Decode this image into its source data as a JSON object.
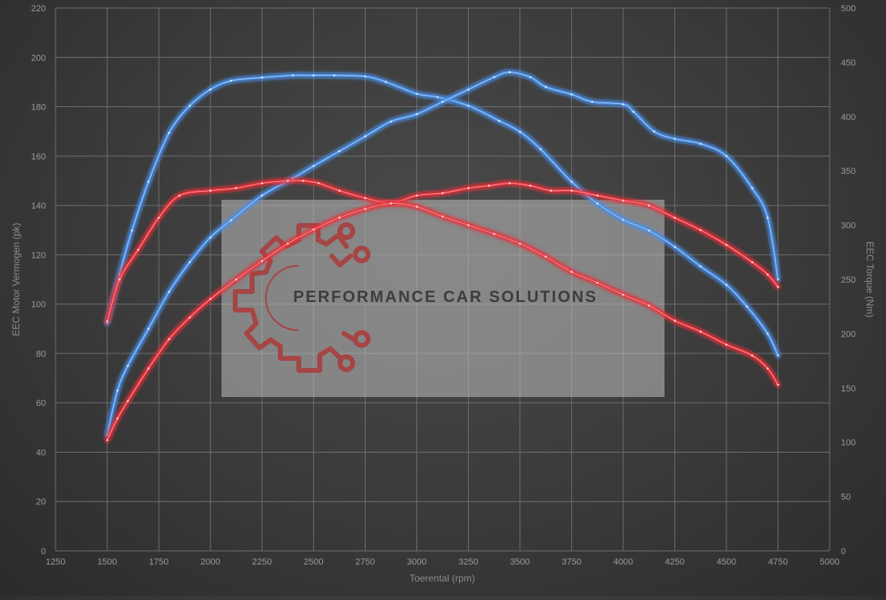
{
  "chart_data": {
    "type": "line",
    "xlabel": "Toerental (rpm)",
    "ylabel_left": "EEC Motor Vermogen (pk)",
    "ylabel_right": "EEC Torque (Nm)",
    "xlim": [
      1250,
      5000
    ],
    "ylim_left": [
      0,
      220
    ],
    "ylim_right": [
      0,
      500
    ],
    "x_ticks": [
      1250,
      1500,
      1750,
      2000,
      2250,
      2500,
      2750,
      3000,
      3250,
      3500,
      3750,
      4000,
      4250,
      4500,
      4750,
      5000
    ],
    "y_ticks_left": [
      0,
      20,
      40,
      60,
      80,
      100,
      120,
      140,
      160,
      180,
      200,
      220
    ],
    "y_ticks_right": [
      0,
      50,
      100,
      150,
      200,
      250,
      300,
      350,
      400,
      450,
      500
    ],
    "grid": true,
    "legend": "none",
    "colors": {
      "tuned": "#4a90e8",
      "stock": "#e8303a"
    },
    "series": [
      {
        "axis": "right",
        "color": "#4a90e8",
        "points": [
          [
            1500,
            210
          ],
          [
            1560,
            255
          ],
          [
            1620,
            295
          ],
          [
            1700,
            340
          ],
          [
            1800,
            385
          ],
          [
            1900,
            410
          ],
          [
            2000,
            425
          ],
          [
            2100,
            433
          ],
          [
            2250,
            436
          ],
          [
            2400,
            438
          ],
          [
            2500,
            438
          ],
          [
            2600,
            438
          ],
          [
            2750,
            437
          ],
          [
            2850,
            432
          ],
          [
            3000,
            421
          ],
          [
            3100,
            418
          ],
          [
            3250,
            410
          ],
          [
            3400,
            396
          ],
          [
            3500,
            386
          ],
          [
            3600,
            370
          ],
          [
            3750,
            340
          ],
          [
            3875,
            320
          ],
          [
            4000,
            305
          ],
          [
            4125,
            295
          ],
          [
            4250,
            280
          ],
          [
            4375,
            262
          ],
          [
            4500,
            245
          ],
          [
            4600,
            225
          ],
          [
            4700,
            200
          ],
          [
            4750,
            180
          ]
        ]
      },
      {
        "axis": "left",
        "color": "#4a90e8",
        "points": [
          [
            1500,
            47
          ],
          [
            1550,
            65
          ],
          [
            1600,
            75
          ],
          [
            1700,
            90
          ],
          [
            1800,
            105
          ],
          [
            1900,
            117
          ],
          [
            2000,
            127
          ],
          [
            2100,
            134
          ],
          [
            2250,
            144
          ],
          [
            2400,
            151
          ],
          [
            2500,
            156
          ],
          [
            2625,
            162
          ],
          [
            2750,
            168
          ],
          [
            2875,
            174
          ],
          [
            3000,
            177
          ],
          [
            3125,
            182
          ],
          [
            3250,
            187
          ],
          [
            3375,
            192
          ],
          [
            3450,
            194
          ],
          [
            3550,
            192
          ],
          [
            3625,
            188
          ],
          [
            3750,
            185
          ],
          [
            3850,
            182
          ],
          [
            4000,
            181
          ],
          [
            4050,
            178
          ],
          [
            4150,
            170
          ],
          [
            4250,
            167
          ],
          [
            4375,
            165
          ],
          [
            4500,
            160
          ],
          [
            4625,
            147
          ],
          [
            4700,
            135
          ],
          [
            4750,
            110
          ]
        ]
      },
      {
        "axis": "left",
        "color": "#e8303a",
        "points": [
          [
            1500,
            93
          ],
          [
            1560,
            110
          ],
          [
            1650,
            122
          ],
          [
            1750,
            135
          ],
          [
            1850,
            144
          ],
          [
            2000,
            146
          ],
          [
            2125,
            147
          ],
          [
            2250,
            149
          ],
          [
            2375,
            150
          ],
          [
            2450,
            150
          ],
          [
            2525,
            149
          ],
          [
            2625,
            146
          ],
          [
            2750,
            143
          ],
          [
            2875,
            141
          ],
          [
            3000,
            144
          ],
          [
            3125,
            145
          ],
          [
            3250,
            147
          ],
          [
            3350,
            148
          ],
          [
            3450,
            149
          ],
          [
            3550,
            148
          ],
          [
            3650,
            146
          ],
          [
            3750,
            146
          ],
          [
            3875,
            144
          ],
          [
            4000,
            142
          ],
          [
            4125,
            140
          ],
          [
            4250,
            135
          ],
          [
            4375,
            130
          ],
          [
            4500,
            124
          ],
          [
            4625,
            117
          ],
          [
            4700,
            112
          ],
          [
            4750,
            107
          ]
        ]
      },
      {
        "axis": "right",
        "color": "#e8303a",
        "points": [
          [
            1500,
            102
          ],
          [
            1550,
            122
          ],
          [
            1600,
            138
          ],
          [
            1700,
            168
          ],
          [
            1800,
            195
          ],
          [
            1900,
            215
          ],
          [
            2000,
            232
          ],
          [
            2125,
            250
          ],
          [
            2250,
            267
          ],
          [
            2375,
            283
          ],
          [
            2500,
            296
          ],
          [
            2625,
            307
          ],
          [
            2750,
            315
          ],
          [
            2875,
            320
          ],
          [
            3000,
            317
          ],
          [
            3125,
            308
          ],
          [
            3250,
            300
          ],
          [
            3375,
            292
          ],
          [
            3500,
            283
          ],
          [
            3625,
            271
          ],
          [
            3750,
            257
          ],
          [
            3875,
            247
          ],
          [
            4000,
            236
          ],
          [
            4125,
            226
          ],
          [
            4250,
            212
          ],
          [
            4375,
            202
          ],
          [
            4500,
            190
          ],
          [
            4625,
            180
          ],
          [
            4700,
            168
          ],
          [
            4750,
            153
          ]
        ]
      }
    ]
  },
  "watermark": {
    "brand_text": "PERFORMANCE CAR SOLUTIONS"
  }
}
